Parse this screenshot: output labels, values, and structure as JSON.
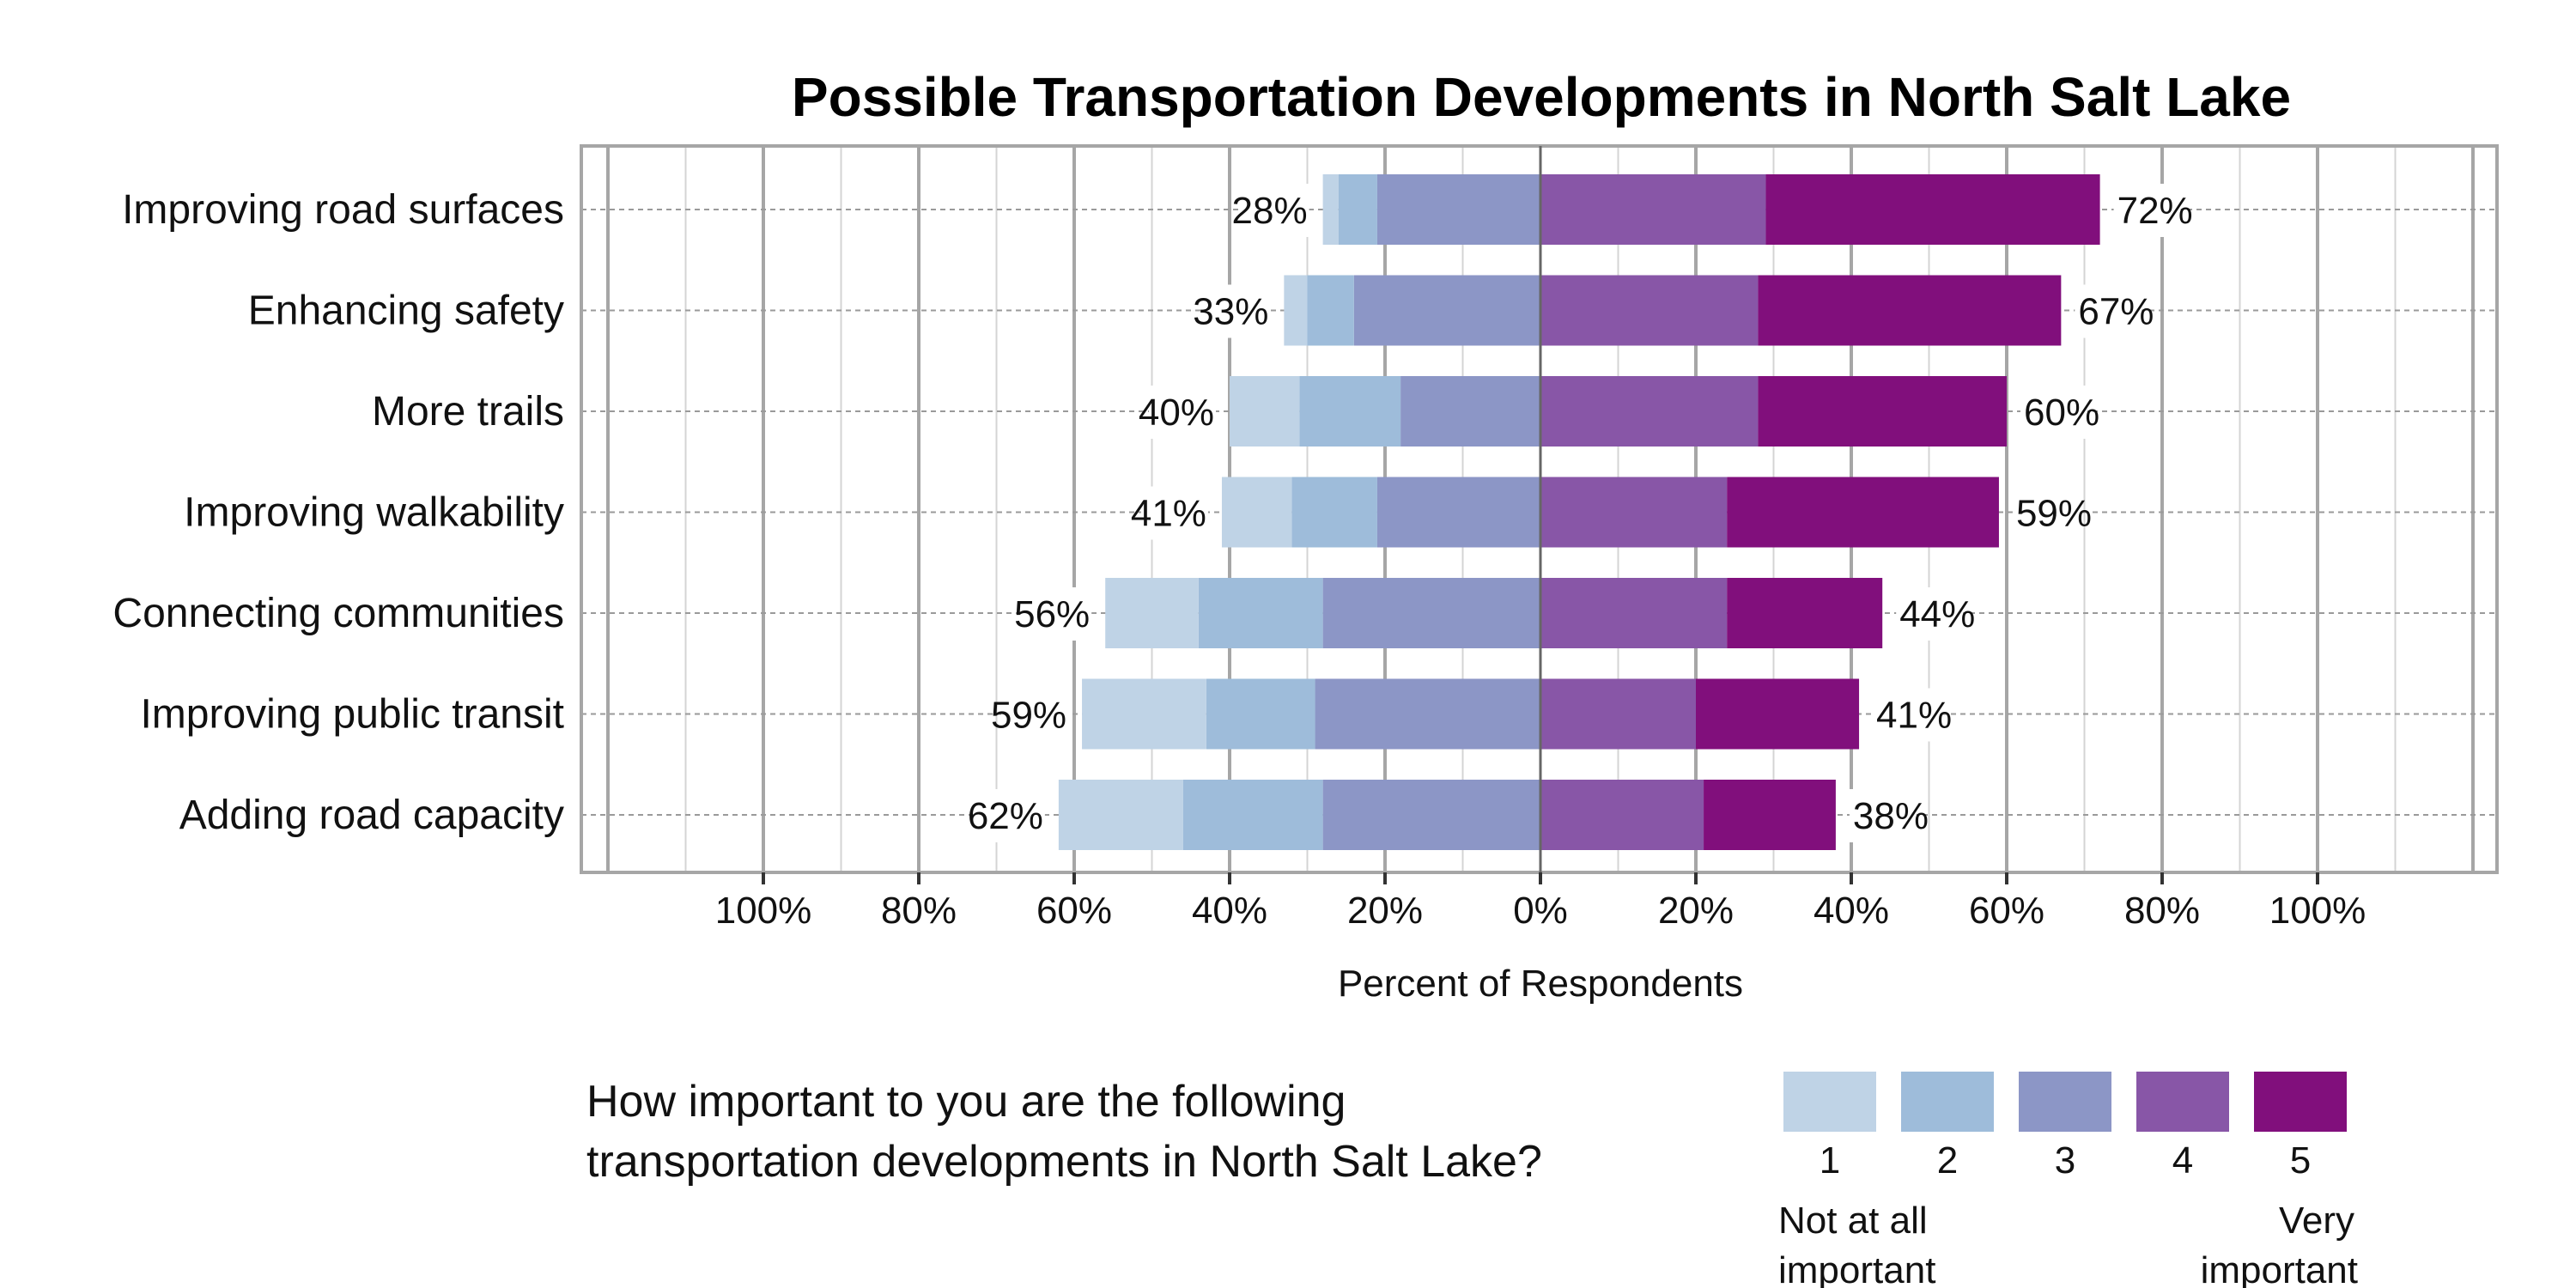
{
  "chart_data": {
    "type": "bar",
    "subtype": "diverging-stacked-horizontal",
    "title": "Possible Transportation Developments in North Salt Lake",
    "xlabel": "Percent of Respondents",
    "ylabel": "",
    "xlim": [
      -100,
      100
    ],
    "x_tick_labels": [
      "100%",
      "80%",
      "60%",
      "40%",
      "20%",
      "0%",
      "20%",
      "40%",
      "60%",
      "80%",
      "100%"
    ],
    "grid": true,
    "categories": [
      "Improving road surfaces",
      "Enhancing safety",
      "More trails",
      "Improving walkability",
      "Connecting communities",
      "Improving public transit",
      "Adding road capacity"
    ],
    "series": [
      {
        "name": "1",
        "side": "left",
        "color": "#bfd3e6",
        "values": [
          2,
          3,
          9,
          9,
          12,
          16,
          16
        ]
      },
      {
        "name": "2",
        "side": "left",
        "color": "#9ebcda",
        "values": [
          5,
          6,
          13,
          11,
          16,
          14,
          18
        ]
      },
      {
        "name": "3",
        "side": "left",
        "color": "#8c96c6",
        "values": [
          21,
          24,
          18,
          21,
          28,
          29,
          28
        ]
      },
      {
        "name": "4",
        "side": "right",
        "color": "#8856a7",
        "values": [
          29,
          28,
          28,
          24,
          24,
          20,
          21
        ]
      },
      {
        "name": "5",
        "side": "right",
        "color": "#810f7c",
        "values": [
          43,
          39,
          32,
          35,
          20,
          21,
          17
        ]
      }
    ],
    "left_totals": [
      "28%",
      "33%",
      "40%",
      "41%",
      "56%",
      "59%",
      "62%"
    ],
    "right_totals": [
      "72%",
      "67%",
      "60%",
      "59%",
      "44%",
      "41%",
      "38%"
    ],
    "legend": {
      "question_line1": "How important to you are the following",
      "question_line2": "transportation developments in North Salt Lake?",
      "low_label_line1": "Not at all",
      "low_label_line2": "important",
      "high_label_line1": "Very",
      "high_label_line2": "important",
      "placement": "bottom"
    }
  }
}
